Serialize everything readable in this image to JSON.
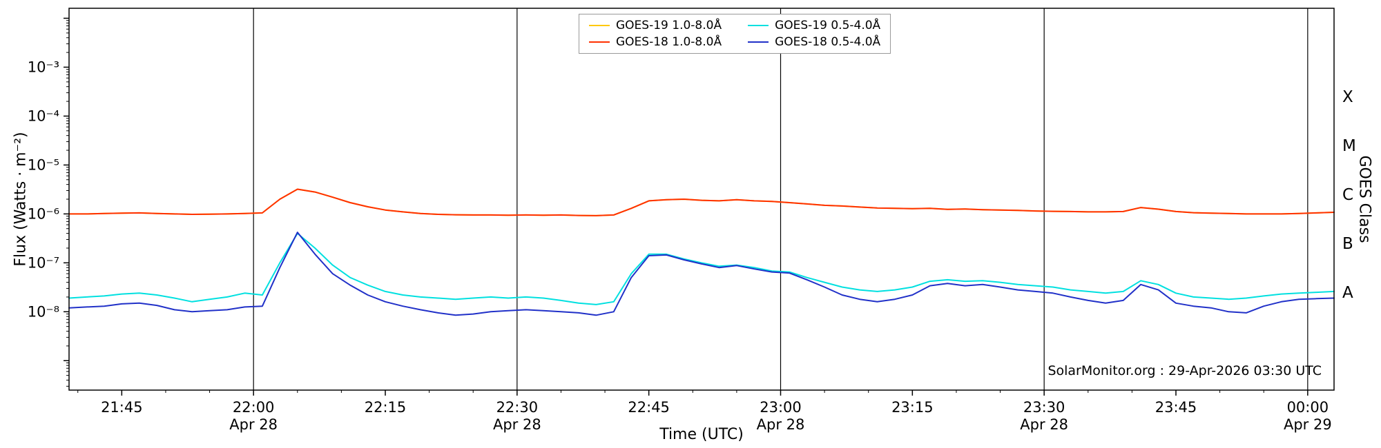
{
  "labels": {
    "y_left": "Flux (Watts · m⁻²)",
    "y_right": "GOES Class",
    "x": "Time (UTC)"
  },
  "watermark": "SolarMonitor.org : 29-Apr-2026 03:30 UTC",
  "chart_data": {
    "type": "line",
    "title": "",
    "xlabel": "Time (UTC)",
    "ylabel": "Flux (Watts · m⁻²)",
    "ylabel_right": "GOES Class",
    "x_start_hour": 21.65,
    "x_step_minutes": 2,
    "xlim_hours": [
      21.65,
      24.05
    ],
    "ylim": [
      2.5e-10,
      0.016
    ],
    "grid": false,
    "legend_position": "top-center",
    "x_ticks": [
      {
        "hour": 21.75,
        "label": "21:45"
      },
      {
        "hour": 22.0,
        "label": "22:00",
        "day": "Apr 28",
        "vline": true
      },
      {
        "hour": 22.25,
        "label": "22:15"
      },
      {
        "hour": 22.5,
        "label": "22:30",
        "day": "Apr 28",
        "vline": true
      },
      {
        "hour": 22.75,
        "label": "22:45"
      },
      {
        "hour": 23.0,
        "label": "23:00",
        "day": "Apr 28",
        "vline": true
      },
      {
        "hour": 23.25,
        "label": "23:15"
      },
      {
        "hour": 23.5,
        "label": "23:30",
        "day": "Apr 28",
        "vline": true
      },
      {
        "hour": 23.75,
        "label": "23:45"
      },
      {
        "hour": 24.0,
        "label": "00:00",
        "day": "Apr 29",
        "vline": true
      }
    ],
    "y_ticks": [
      {
        "value": 0.001,
        "label": "10⁻³"
      },
      {
        "value": 0.0001,
        "label": "10⁻⁴"
      },
      {
        "value": 1e-05,
        "label": "10⁻⁵"
      },
      {
        "value": 1e-06,
        "label": "10⁻⁶"
      },
      {
        "value": 1e-07,
        "label": "10⁻⁷"
      },
      {
        "value": 1e-08,
        "label": "10⁻⁸"
      }
    ],
    "goes_classes": [
      {
        "label": "X",
        "value": 0.00025
      },
      {
        "label": "M",
        "value": 2.5e-05
      },
      {
        "label": "C",
        "value": 2.5e-06
      },
      {
        "label": "B",
        "value": 2.5e-07
      },
      {
        "label": "A",
        "value": 2.5e-08
      }
    ],
    "series": [
      {
        "name": "GOES-19 1.0-8.0Å",
        "color": "#ffc800",
        "scale": 1e-06,
        "values": [
          1.0,
          1.0,
          1.02,
          1.04,
          1.05,
          1.02,
          1.0,
          0.98,
          0.99,
          1.0,
          1.02,
          1.05,
          2.0,
          3.2,
          2.8,
          2.2,
          1.7,
          1.4,
          1.2,
          1.1,
          1.02,
          0.98,
          0.96,
          0.95,
          0.95,
          0.94,
          0.95,
          0.94,
          0.95,
          0.93,
          0.92,
          0.95,
          1.3,
          1.85,
          1.95,
          2.0,
          1.9,
          1.85,
          1.95,
          1.85,
          1.8,
          1.7,
          1.6,
          1.5,
          1.45,
          1.38,
          1.32,
          1.3,
          1.28,
          1.3,
          1.24,
          1.26,
          1.22,
          1.2,
          1.18,
          1.15,
          1.13,
          1.12,
          1.1,
          1.1,
          1.12,
          1.35,
          1.25,
          1.12,
          1.06,
          1.04,
          1.02,
          1.0,
          1.0,
          1.0,
          1.02,
          1.05,
          1.08
        ]
      },
      {
        "name": "GOES-18 1.0-8.0Å",
        "color": "#ff3000",
        "scale": 1e-06,
        "values": [
          1.0,
          1.0,
          1.02,
          1.04,
          1.05,
          1.02,
          1.0,
          0.98,
          0.99,
          1.0,
          1.02,
          1.05,
          2.0,
          3.2,
          2.8,
          2.2,
          1.7,
          1.4,
          1.2,
          1.1,
          1.02,
          0.98,
          0.96,
          0.95,
          0.95,
          0.94,
          0.95,
          0.94,
          0.95,
          0.93,
          0.92,
          0.95,
          1.3,
          1.85,
          1.95,
          2.0,
          1.9,
          1.85,
          1.95,
          1.85,
          1.8,
          1.7,
          1.6,
          1.5,
          1.45,
          1.38,
          1.32,
          1.3,
          1.28,
          1.3,
          1.24,
          1.26,
          1.22,
          1.2,
          1.18,
          1.15,
          1.13,
          1.12,
          1.1,
          1.1,
          1.12,
          1.35,
          1.25,
          1.12,
          1.06,
          1.04,
          1.02,
          1.0,
          1.0,
          1.0,
          1.02,
          1.05,
          1.08
        ]
      },
      {
        "name": "GOES-19 0.5-4.0Å",
        "color": "#00e0e0",
        "scale": 1e-08,
        "values": [
          1.9,
          2.0,
          2.1,
          2.3,
          2.4,
          2.2,
          1.9,
          1.6,
          1.8,
          2.0,
          2.4,
          2.2,
          10,
          40,
          20,
          9,
          5,
          3.5,
          2.6,
          2.2,
          2.0,
          1.9,
          1.8,
          1.9,
          2.0,
          1.9,
          2.0,
          1.9,
          1.7,
          1.5,
          1.4,
          1.6,
          6,
          15,
          15,
          12,
          10,
          8.5,
          9.0,
          8.0,
          6.8,
          6.5,
          5.0,
          4.0,
          3.2,
          2.8,
          2.6,
          2.8,
          3.2,
          4.2,
          4.5,
          4.2,
          4.3,
          4.0,
          3.6,
          3.4,
          3.2,
          2.8,
          2.6,
          2.4,
          2.6,
          4.3,
          3.6,
          2.4,
          2.0,
          1.9,
          1.8,
          1.9,
          2.1,
          2.3,
          2.4,
          2.5,
          2.6
        ]
      },
      {
        "name": "GOES-18 0.5-4.0Å",
        "color": "#2030c8",
        "scale": 1e-08,
        "values": [
          1.2,
          1.25,
          1.3,
          1.45,
          1.5,
          1.35,
          1.1,
          1.0,
          1.05,
          1.1,
          1.25,
          1.3,
          8,
          42,
          15,
          6,
          3.5,
          2.2,
          1.6,
          1.3,
          1.1,
          0.95,
          0.85,
          0.9,
          1.0,
          1.05,
          1.1,
          1.05,
          1.0,
          0.95,
          0.85,
          1.0,
          5,
          14,
          14.5,
          11.5,
          9.5,
          8.0,
          8.8,
          7.5,
          6.5,
          6.2,
          4.5,
          3.2,
          2.2,
          1.8,
          1.6,
          1.8,
          2.2,
          3.4,
          3.8,
          3.4,
          3.6,
          3.2,
          2.8,
          2.6,
          2.4,
          2.0,
          1.7,
          1.5,
          1.7,
          3.6,
          2.8,
          1.5,
          1.3,
          1.2,
          1.0,
          0.95,
          1.3,
          1.6,
          1.8,
          1.85,
          1.9
        ]
      }
    ]
  }
}
